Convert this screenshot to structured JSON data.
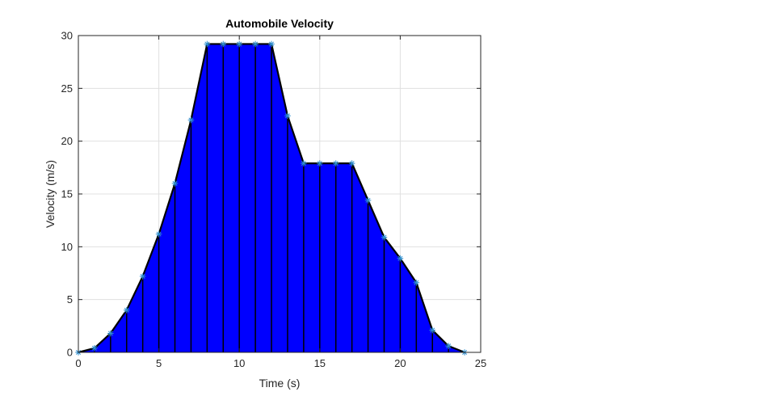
{
  "chart_data": {
    "type": "area",
    "title": "Automobile Velocity",
    "xlabel": "Time (s)",
    "ylabel": "Velocity (m/s)",
    "xlim": [
      0,
      25
    ],
    "ylim": [
      0,
      30
    ],
    "x_ticks": [
      0,
      5,
      10,
      15,
      20,
      25
    ],
    "y_ticks": [
      0,
      5,
      10,
      15,
      20,
      25,
      30
    ],
    "grid": true,
    "x": [
      0,
      1,
      2,
      3,
      4,
      5,
      6,
      7,
      8,
      9,
      10,
      11,
      12,
      13,
      14,
      15,
      16,
      17,
      18,
      19,
      20,
      21,
      22,
      23,
      24
    ],
    "values": [
      0,
      0.4,
      1.8,
      4.0,
      7.2,
      11.2,
      16.0,
      22.0,
      29.2,
      29.2,
      29.2,
      29.2,
      29.2,
      22.4,
      17.9,
      17.9,
      17.9,
      17.9,
      14.4,
      10.9,
      8.9,
      6.6,
      2.1,
      0.6,
      0
    ],
    "colors": {
      "fill": "#0000ff",
      "edge": "#000000",
      "marker": "#2f8fd0",
      "grid": "#e0e0e0",
      "axis": "#262626"
    }
  }
}
